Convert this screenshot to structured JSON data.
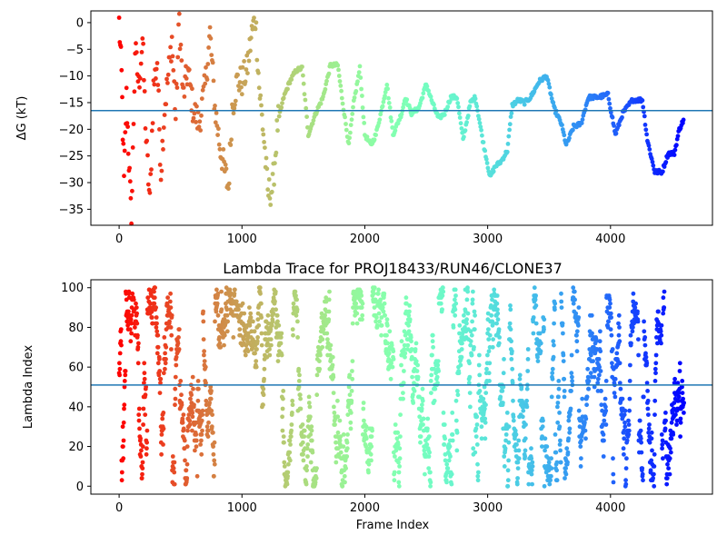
{
  "chart_data": [
    {
      "type": "scatter",
      "title": "",
      "xlabel": "",
      "ylabel": "ΔG (kT)",
      "xlim": [
        -230,
        4830
      ],
      "ylim": [
        -38,
        2.2
      ],
      "xticks": [
        0,
        1000,
        2000,
        3000,
        4000
      ],
      "yticks": [
        0,
        -5,
        -10,
        -15,
        -20,
        -25,
        -30,
        -35
      ],
      "grid": false,
      "colormap": "rainbow (red at frame 0 to violet at frame 4600)",
      "hline": {
        "y": -16.5,
        "color": "#1f77b4"
      },
      "trace_points": [
        [
          0,
          0
        ],
        [
          20,
          -10
        ],
        [
          40,
          -30
        ],
        [
          60,
          -14
        ],
        [
          80,
          -26
        ],
        [
          100,
          -38
        ],
        [
          130,
          -5
        ],
        [
          160,
          -12
        ],
        [
          190,
          -3
        ],
        [
          220,
          -22
        ],
        [
          250,
          -34
        ],
        [
          280,
          -12
        ],
        [
          310,
          -7
        ],
        [
          340,
          -28
        ],
        [
          370,
          -16
        ],
        [
          400,
          -10
        ],
        [
          430,
          -3
        ],
        [
          460,
          -18
        ],
        [
          490,
          1
        ],
        [
          520,
          -14
        ],
        [
          560,
          -9
        ],
        [
          600,
          -16
        ],
        [
          650,
          -19
        ],
        [
          700,
          -12
        ],
        [
          740,
          -2
        ],
        [
          780,
          -16
        ],
        [
          820,
          -23
        ],
        [
          860,
          -28
        ],
        [
          890,
          -31
        ],
        [
          920,
          -16
        ],
        [
          960,
          -11
        ],
        [
          1000,
          -11
        ],
        [
          1040,
          -9
        ],
        [
          1080,
          -2
        ],
        [
          1110,
          1
        ],
        [
          1140,
          -12
        ],
        [
          1180,
          -22
        ],
        [
          1210,
          -32
        ],
        [
          1250,
          -31
        ],
        [
          1290,
          -19
        ],
        [
          1340,
          -14
        ],
        [
          1390,
          -11
        ],
        [
          1440,
          -9
        ],
        [
          1490,
          -8.5
        ],
        [
          1540,
          -21
        ],
        [
          1600,
          -17
        ],
        [
          1660,
          -14
        ],
        [
          1720,
          -8
        ],
        [
          1780,
          -8
        ],
        [
          1820,
          -15
        ],
        [
          1870,
          -23
        ],
        [
          1910,
          -15
        ],
        [
          1960,
          -8.5
        ],
        [
          2000,
          -21
        ],
        [
          2050,
          -23
        ],
        [
          2090,
          -21
        ],
        [
          2140,
          -16
        ],
        [
          2180,
          -11.5
        ],
        [
          2230,
          -21
        ],
        [
          2300,
          -17
        ],
        [
          2330,
          -14
        ],
        [
          2380,
          -17
        ],
        [
          2440,
          -16
        ],
        [
          2500,
          -11.5
        ],
        [
          2550,
          -15
        ],
        [
          2600,
          -18
        ],
        [
          2650,
          -17
        ],
        [
          2700,
          -14
        ],
        [
          2750,
          -14
        ],
        [
          2800,
          -22
        ],
        [
          2860,
          -15
        ],
        [
          2900,
          -14
        ],
        [
          2960,
          -22
        ],
        [
          3020,
          -29
        ],
        [
          3060,
          -27
        ],
        [
          3110,
          -26
        ],
        [
          3160,
          -24
        ],
        [
          3200,
          -15.5
        ],
        [
          3250,
          -14.5
        ],
        [
          3300,
          -15
        ],
        [
          3350,
          -14
        ],
        [
          3420,
          -11
        ],
        [
          3480,
          -10
        ],
        [
          3540,
          -16
        ],
        [
          3600,
          -19
        ],
        [
          3640,
          -23
        ],
        [
          3700,
          -19.5
        ],
        [
          3760,
          -19
        ],
        [
          3820,
          -14
        ],
        [
          3900,
          -14
        ],
        [
          3980,
          -13.5
        ],
        [
          4040,
          -21
        ],
        [
          4100,
          -17
        ],
        [
          4180,
          -14.5
        ],
        [
          4260,
          -14.5
        ],
        [
          4300,
          -22
        ],
        [
          4360,
          -28
        ],
        [
          4420,
          -28
        ],
        [
          4470,
          -24.5
        ],
        [
          4520,
          -24.5
        ],
        [
          4560,
          -20
        ],
        [
          4600,
          -18
        ]
      ]
    },
    {
      "type": "scatter",
      "title": "Lambda Trace for PROJ18433/RUN46/CLONE37",
      "xlabel": "Frame Index",
      "ylabel": "Lambda Index",
      "xlim": [
        -230,
        4830
      ],
      "ylim": [
        -4,
        104
      ],
      "xticks": [
        0,
        1000,
        2000,
        3000,
        4000
      ],
      "yticks": [
        0,
        20,
        40,
        60,
        80,
        100
      ],
      "grid": false,
      "colormap": "rainbow (red at frame 0 to violet at frame 4600)",
      "hline": {
        "y": 51,
        "color": "#1f77b4"
      },
      "n_frames": 4600,
      "lambda_range": [
        0,
        100
      ],
      "distribution": "dense random walk of lambda index over frames, spanning 0-100"
    }
  ]
}
